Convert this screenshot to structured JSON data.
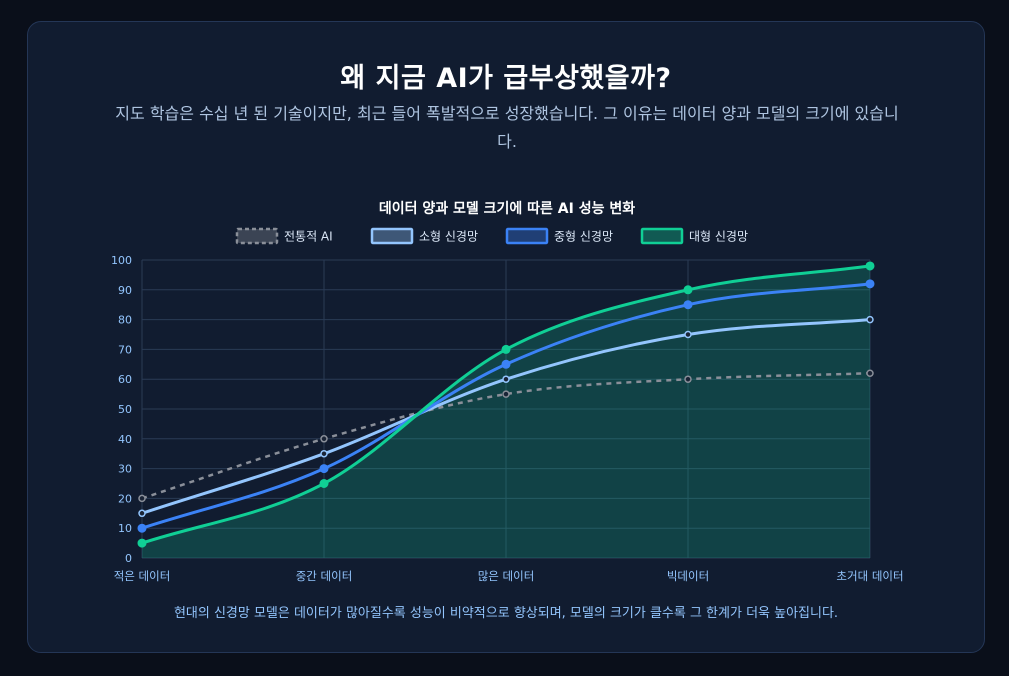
{
  "page": {
    "title": "왜 지금 AI가 급부상했을까?",
    "subtitle": "지도 학습은 수십 년 된 기술이지만, 최근 들어 폭발적으로 성장했습니다. 그 이유는 데이터 양과 모델의 크기에 있습니다.",
    "caption": "현대의 신경망 모델은 데이터가 많아질수록 성능이 비약적으로 향상되며, 모델의 크기가 클수록 그 한계가 더욱 높아집니다."
  },
  "colors": {
    "background": "#0a0f1a",
    "card": "#111c30",
    "grid": "#2a3b55",
    "tick": "#93c5fd"
  },
  "chart_data": {
    "type": "line",
    "title": "데이터 양과 모델 크기에 따른 AI 성능 변화",
    "categories": [
      "적은 데이터",
      "중간 데이터",
      "많은 데이터",
      "빅데이터",
      "초거대 데이터"
    ],
    "ylim": [
      0,
      100
    ],
    "yticks": [
      0,
      10,
      20,
      30,
      40,
      50,
      60,
      70,
      80,
      90,
      100
    ],
    "xlabel": "",
    "ylabel": "",
    "grid": true,
    "legend_position": "top",
    "series": [
      {
        "name": "전통적 AI",
        "values": [
          20,
          40,
          55,
          60,
          62
        ],
        "color": "#8a8f99",
        "dashed": true,
        "fill": false
      },
      {
        "name": "소형 신경망",
        "values": [
          15,
          35,
          60,
          75,
          80
        ],
        "color": "#93c5fd",
        "dashed": false,
        "fill": false
      },
      {
        "name": "중형 신경망",
        "values": [
          10,
          30,
          65,
          85,
          92
        ],
        "color": "#3b82f6",
        "dashed": false,
        "fill": false
      },
      {
        "name": "대형 신경망",
        "values": [
          5,
          25,
          70,
          90,
          98
        ],
        "color": "#10cf95",
        "dashed": false,
        "fill": true
      }
    ]
  }
}
